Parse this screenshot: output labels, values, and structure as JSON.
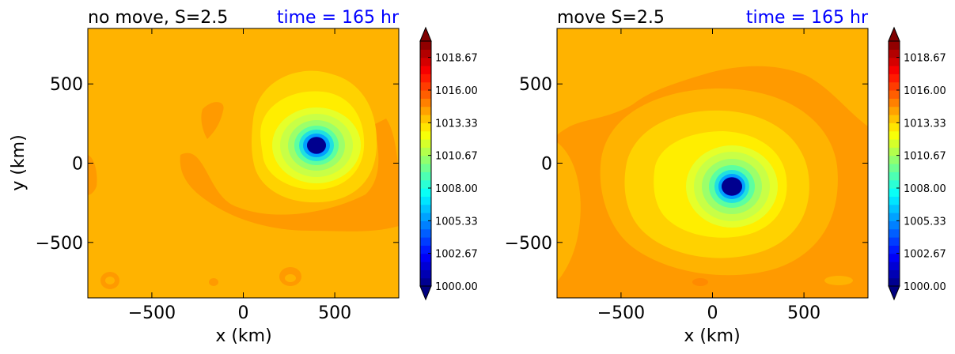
{
  "chart_data": [
    {
      "type": "heatmap",
      "title_left": "no move, S=2.5",
      "title_right": "time = 165 hr",
      "xlabel": "x (km)",
      "ylabel": "y (km)",
      "xlim": [
        -850,
        850
      ],
      "ylim": [
        -850,
        850
      ],
      "xticks": [
        -500,
        0,
        500
      ],
      "yticks": [
        -500,
        0,
        500
      ],
      "xtick_labels": [
        "−500",
        "0",
        "500"
      ],
      "ytick_labels": [
        "−500",
        "0",
        "500"
      ],
      "center_x_km": 390,
      "center_y_km": 110,
      "min_pressure": 1000.0,
      "ambient_pressure": 1014.0,
      "colorbar": {
        "min": 1000.0,
        "max": 1020.0,
        "extend": "both",
        "tick_values": [
          1000.0,
          1002.67,
          1005.33,
          1008.0,
          1010.67,
          1013.33,
          1016.0,
          1018.67
        ],
        "tick_labels": [
          "1000.00",
          "1002.67",
          "1005.33",
          "1008.00",
          "1010.67",
          "1013.33",
          "1016.00",
          "1018.67"
        ]
      }
    },
    {
      "type": "heatmap",
      "title_left": "move S=2.5",
      "title_right": "time = 165 hr",
      "xlabel": "x (km)",
      "ylabel": "",
      "xlim": [
        -850,
        850
      ],
      "ylim": [
        -850,
        850
      ],
      "xticks": [
        -500,
        0,
        500
      ],
      "yticks": [
        -500,
        0,
        500
      ],
      "xtick_labels": [
        "−500",
        "0",
        "500"
      ],
      "ytick_labels": [
        "−500",
        "0",
        "500"
      ],
      "center_x_km": 110,
      "center_y_km": -130,
      "min_pressure": 1000.0,
      "ambient_pressure": 1015.0,
      "colorbar": {
        "min": 1000.0,
        "max": 1020.0,
        "extend": "both",
        "tick_values": [
          1000.0,
          1002.67,
          1005.33,
          1008.0,
          1010.67,
          1013.33,
          1016.0,
          1018.67
        ],
        "tick_labels": [
          "1000.00",
          "1002.67",
          "1005.33",
          "1008.00",
          "1010.67",
          "1013.33",
          "1016.00",
          "1018.67"
        ]
      }
    }
  ],
  "colors": {
    "title_right": "#0000ff",
    "ambient_orange": "#ffb300",
    "ring_orange": "#ff9a00"
  }
}
